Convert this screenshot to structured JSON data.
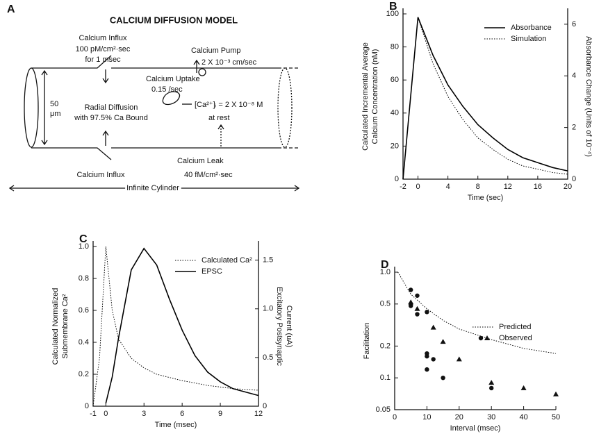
{
  "diagram": {
    "label": "A",
    "title": "CALCIUM DIFFUSION MODEL",
    "influx_top": [
      "Calcium Influx",
      "100 pM/cm²·sec",
      "for 1 msec"
    ],
    "pump": [
      "Calcium Pump",
      "2 X 10⁻³ cm/sec"
    ],
    "uptake": [
      "Calcium Uptake",
      "0.15 /sec"
    ],
    "diameter": [
      "50",
      "μm"
    ],
    "diffusion": [
      "Radial Diffusion",
      "with 97.5% Ca Bound"
    ],
    "rest": [
      "[Ca²⁺]ᵢ = 2 X 10⁻⁸ M",
      "at rest"
    ],
    "leak": [
      "Calcium Leak",
      "40 fM/cm²·sec"
    ],
    "influx_bottom": "Calcium Influx",
    "cylinder": "Infinite Cylinder"
  },
  "chart_data": [
    {
      "type": "line",
      "panel": "B",
      "xlabel": "Time (sec)",
      "ylabel": [
        "Calculated Incremental Average",
        "Calcium Concentration (nM)"
      ],
      "y2label": [
        "Absorbance Change (Units of 10⁻⁴)"
      ],
      "x": [
        -2,
        0,
        2,
        4,
        6,
        8,
        10,
        12,
        14,
        16,
        18,
        20
      ],
      "xlim": [
        -2,
        20
      ],
      "xticks": [
        -2,
        0,
        4,
        8,
        12,
        16,
        20
      ],
      "ylim": [
        0,
        100
      ],
      "yticks": [
        0,
        20,
        40,
        60,
        80,
        100
      ],
      "y2lim": [
        0,
        6.4
      ],
      "y2ticks": [
        0,
        2,
        4,
        6
      ],
      "legend": "upper right",
      "series": [
        {
          "name": "Absorbance",
          "color": "#000000",
          "style": "solid",
          "values": [
            0,
            98,
            75,
            57,
            44,
            33,
            25,
            18,
            13,
            10,
            7,
            5
          ]
        },
        {
          "name": "Simulation",
          "color": "#000000",
          "style": "dotted",
          "values": [
            0,
            98,
            70,
            50,
            36,
            25,
            18,
            12,
            8,
            6,
            4,
            3
          ]
        }
      ]
    },
    {
      "type": "line",
      "panel": "C",
      "xlabel": "Time (msec)",
      "ylabel": [
        "Calculated Normalized",
        "Submembrane Ca²"
      ],
      "y2label": [
        "Excitatory Postsynaptic",
        "Current (uA)"
      ],
      "x": [
        -1,
        -0.5,
        0,
        0.5,
        1,
        2,
        3,
        4,
        5,
        6,
        7,
        8,
        9,
        10,
        12
      ],
      "xlim": [
        -1,
        12
      ],
      "xticks": [
        -1,
        0,
        3,
        6,
        9,
        12
      ],
      "ylim": [
        0,
        1
      ],
      "yticks": [
        0,
        0.2,
        0.4,
        0.6,
        0.8,
        {
          "value": 1,
          "label": "1.0"
        }
      ],
      "y2lim": [
        0,
        1.64
      ],
      "y2ticks": [
        0,
        0.5,
        {
          "value": 1,
          "label": "1.0"
        },
        1.5
      ],
      "legend": "upper right",
      "series": [
        {
          "name": "Calculated Ca²",
          "color": "#000000",
          "style": "dotted",
          "values": [
            0,
            0.3,
            1,
            0.6,
            0.42,
            0.3,
            0.24,
            0.2,
            0.18,
            0.16,
            0.145,
            0.13,
            0.12,
            0.11,
            0.1
          ]
        },
        {
          "name": "EPSC",
          "color": "#000000",
          "style": "solid",
          "axis": "y2",
          "values": [
            null,
            null,
            0.03,
            0.3,
            0.7,
            1.4,
            1.62,
            1.45,
            1.1,
            0.78,
            0.52,
            0.35,
            0.25,
            0.18,
            0.11
          ]
        }
      ]
    },
    {
      "type": "scatter",
      "panel": "D",
      "xlabel": "Interval (msec)",
      "ylabel": [
        "Facilitation"
      ],
      "xlim": [
        0,
        50
      ],
      "xticks": [
        0,
        10,
        20,
        30,
        40,
        50
      ],
      "ylim": [
        0.05,
        1
      ],
      "ylog": true,
      "yticks": [
        0.05,
        0.1,
        0.2,
        0.5,
        {
          "value": 1,
          "label": "1.0"
        }
      ],
      "legend": "center right",
      "series": [
        {
          "name": "Predicted",
          "color": "#000000",
          "style": "dotted",
          "x": [
            1,
            5,
            10,
            15,
            20,
            30,
            40,
            50
          ],
          "values": [
            1,
            0.62,
            0.45,
            0.35,
            0.29,
            0.23,
            0.19,
            0.17
          ]
        },
        {
          "name": "Observed",
          "color": "#000000",
          "style": "points",
          "x": [
            5,
            5,
            5,
            7,
            7,
            10,
            10,
            10,
            10,
            12,
            15,
            30,
            5,
            7,
            12,
            15,
            20,
            30,
            40,
            50
          ],
          "values": [
            0.68,
            0.5,
            0.48,
            0.6,
            0.4,
            0.42,
            0.17,
            0.16,
            0.12,
            0.15,
            0.1,
            0.08,
            0.52,
            0.45,
            0.3,
            0.22,
            0.15,
            0.09,
            0.08,
            0.07
          ],
          "markers": [
            "circle",
            "circle",
            "circle",
            "circle",
            "circle",
            "circle",
            "circle",
            "circle",
            "circle",
            "circle",
            "circle",
            "circle",
            "triangle",
            "triangle",
            "triangle",
            "triangle",
            "triangle",
            "triangle",
            "triangle",
            "triangle"
          ]
        }
      ]
    }
  ]
}
